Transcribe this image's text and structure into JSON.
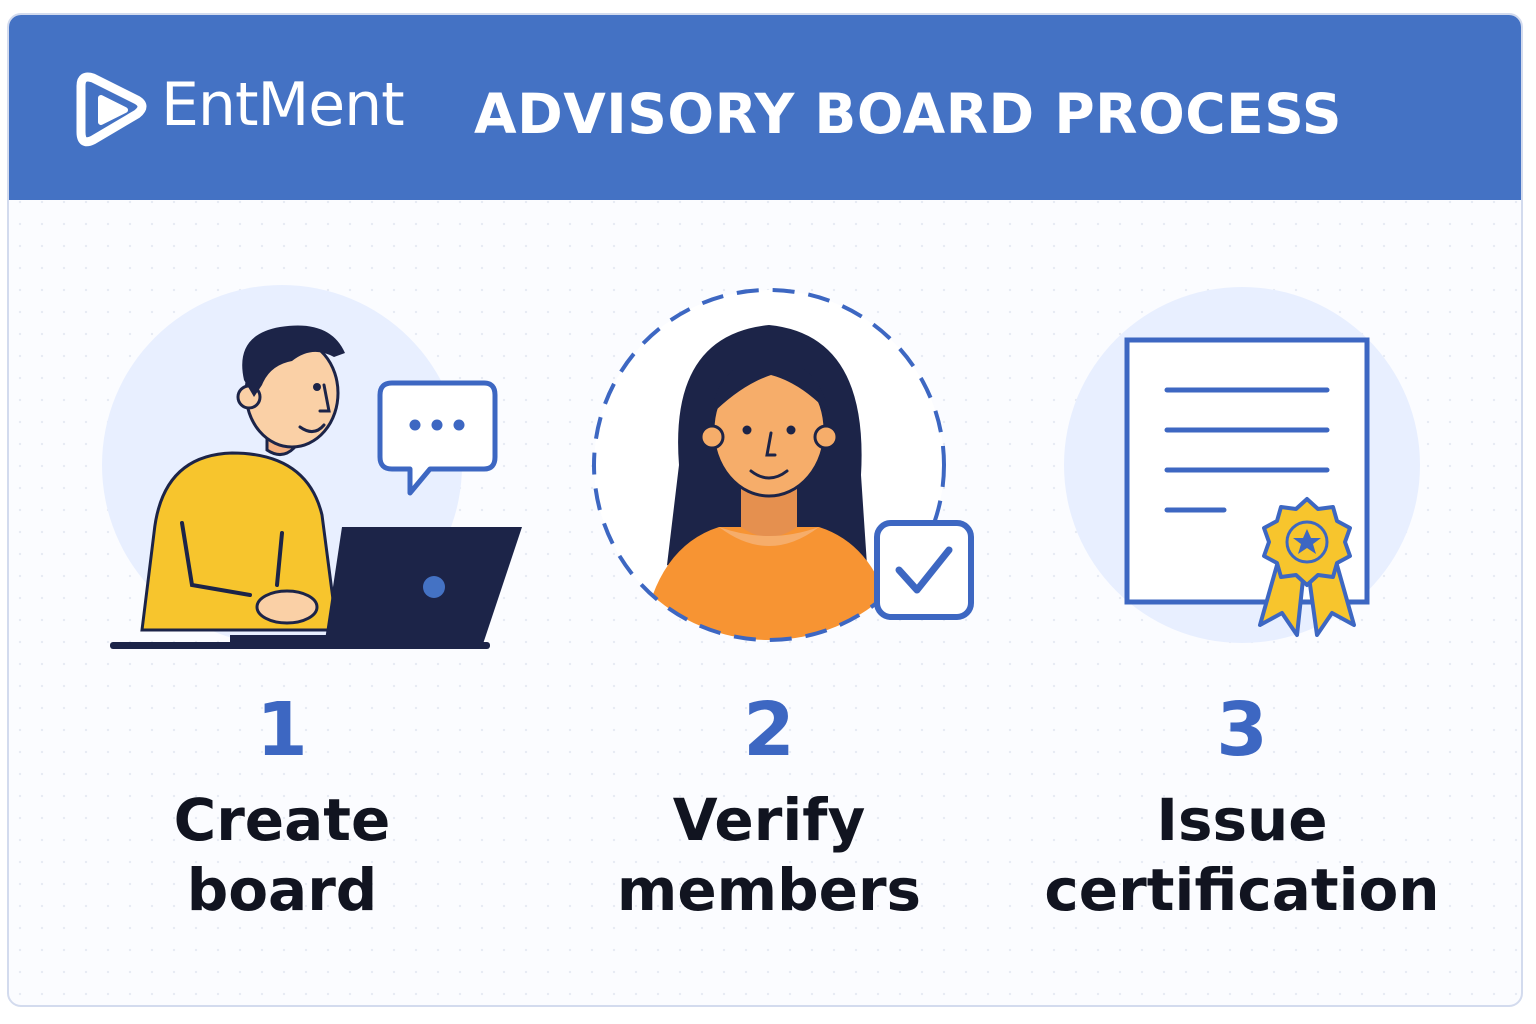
{
  "header": {
    "brand": "EntMent",
    "title": "ADVISORY BOARD PROCESS",
    "logo_icon": "play-logo-icon"
  },
  "colors": {
    "header_blue": "#4472c4",
    "accent_blue": "#3d67c2",
    "text_dark": "#111420",
    "circle_bg": "#e8efff",
    "yellow": "#f7c52d",
    "orange": "#f79433",
    "navy": "#1c2448"
  },
  "steps": [
    {
      "number": "1",
      "line1": "Create",
      "line2": "board",
      "icon": "person-laptop-icon"
    },
    {
      "number": "2",
      "line1": "Verify",
      "line2": "members",
      "icon": "verified-member-icon"
    },
    {
      "number": "3",
      "line1": "Issue",
      "line2": "certification",
      "icon": "certificate-icon"
    }
  ]
}
